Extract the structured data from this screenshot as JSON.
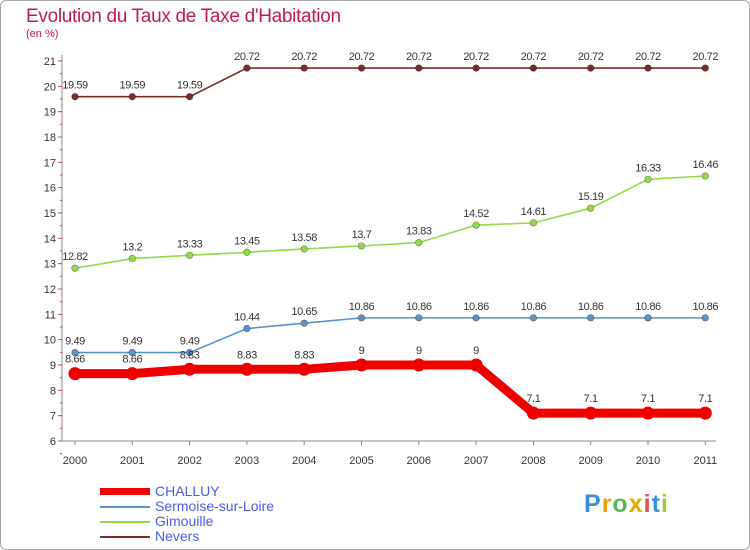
{
  "chart_data": {
    "type": "line",
    "title": "Evolution du Taux de Taxe d'Habitation",
    "unit": "(en %)",
    "x": [
      "2000",
      "2001",
      "2002",
      "2003",
      "2004",
      "2005",
      "2006",
      "2007",
      "2008",
      "2009",
      "2010",
      "2011"
    ],
    "ylim": [
      6,
      21
    ],
    "yticks": [
      6,
      7,
      8,
      9,
      10,
      11,
      12,
      13,
      14,
      15,
      16,
      17,
      18,
      19,
      20,
      21
    ],
    "grid": false,
    "legend_position": "bottom-left",
    "series": [
      {
        "name": "CHALLUY",
        "color": "#ee0000",
        "values": [
          8.66,
          8.66,
          8.83,
          8.83,
          8.83,
          9,
          9,
          9,
          7.1,
          7.1,
          7.1,
          7.1
        ],
        "labels": [
          "8.66",
          "8.66",
          "8.83",
          "8.83",
          "8.83",
          "9",
          "9",
          "9",
          "7.1",
          "7.1",
          "7.1",
          "7.1"
        ]
      },
      {
        "name": "Sermoise-sur-Loire",
        "color": "#5b92c8",
        "values": [
          9.49,
          9.49,
          9.49,
          10.44,
          10.65,
          10.86,
          10.86,
          10.86,
          10.86,
          10.86,
          10.86,
          10.86
        ],
        "labels": [
          "9.49",
          "9.49",
          "9.49",
          "10.44",
          "10.65",
          "10.86",
          "10.86",
          "10.86",
          "10.86",
          "10.86",
          "10.86",
          "10.86"
        ]
      },
      {
        "name": "Gimouille",
        "color": "#95d84a",
        "values": [
          12.82,
          13.2,
          13.33,
          13.45,
          13.58,
          13.7,
          13.83,
          14.52,
          14.61,
          15.19,
          16.33,
          16.46
        ],
        "labels": [
          "12.82",
          "13.2",
          "13.33",
          "13.45",
          "13.58",
          "13.7",
          "13.83",
          "14.52",
          "14.61",
          "15.19",
          "16.33",
          "16.46"
        ]
      },
      {
        "name": "Nevers",
        "color": "#7a2b2b",
        "values": [
          19.59,
          19.59,
          19.59,
          20.72,
          20.72,
          20.72,
          20.72,
          20.72,
          20.72,
          20.72,
          20.72,
          20.72
        ],
        "labels": [
          "19.59",
          "19.59",
          "19.59",
          "20.72",
          "20.72",
          "20.72",
          "20.72",
          "20.72",
          "20.72",
          "20.72",
          "20.72",
          "20.72"
        ]
      }
    ]
  },
  "legend": {
    "items": [
      {
        "label": "CHALLUY",
        "color": "#ee0000"
      },
      {
        "label": "Sermoise-sur-Loire",
        "color": "#5b92c8"
      },
      {
        "label": "Gimouille",
        "color": "#95d84a"
      },
      {
        "label": "Nevers",
        "color": "#7a2b2b"
      }
    ]
  },
  "logo": {
    "letters": [
      "P",
      "r",
      "o",
      "x",
      "i",
      "t",
      "i"
    ],
    "colors": [
      "#3a8fd9",
      "#f39c12",
      "#5cb85c",
      "#e6a700",
      "#d9534f",
      "#3a8fd9",
      "#9ccc3c"
    ]
  }
}
